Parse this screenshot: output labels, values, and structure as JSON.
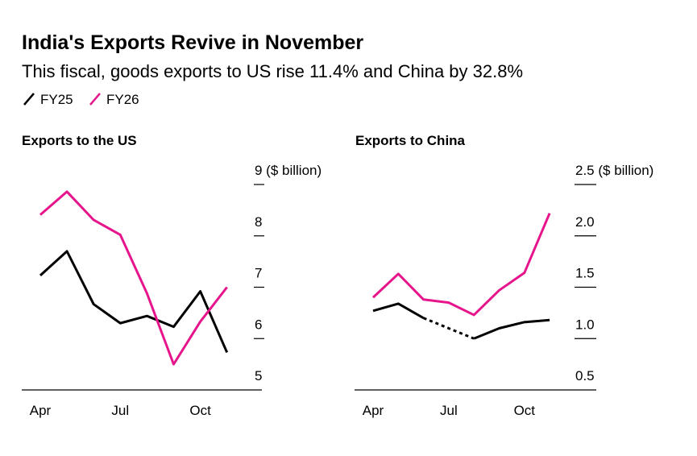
{
  "header": {
    "title": "India's Exports Revive in November",
    "subtitle": "This fiscal, goods exports to US rise 11.4% and China by 32.8%"
  },
  "chart_data": [
    {
      "type": "line",
      "title": "Exports to the US",
      "categories": [
        "Apr",
        null,
        null,
        "Jul",
        null,
        null,
        "Oct",
        null
      ],
      "series": [
        {
          "name": "FY25",
          "color": "#000000",
          "values": [
            7.23,
            7.7,
            6.67,
            6.3,
            6.44,
            6.23,
            6.92,
            5.73
          ]
        },
        {
          "name": "FY26",
          "color": "#e6158c",
          "values": [
            8.41,
            8.86,
            8.31,
            8.02,
            6.88,
            5.5,
            6.33,
            7.0
          ]
        }
      ],
      "ylim": [
        5,
        9
      ],
      "yticks": [
        5,
        6,
        7,
        8,
        {
          "value": 9,
          "label": "9 ($ billion)"
        }
      ]
    },
    {
      "type": "line",
      "title": "Exports to China",
      "categories": [
        "Apr",
        null,
        null,
        "Jul",
        null,
        null,
        "Oct",
        null
      ],
      "series": [
        {
          "name": "FY25",
          "color": "#000000",
          "values": [
            1.27,
            1.34,
            1.2,
            null,
            1.0,
            1.1,
            1.16,
            1.18
          ]
        },
        {
          "name": "FY26",
          "color": "#e6158c",
          "values": [
            1.4,
            1.63,
            1.38,
            1.35,
            1.23,
            1.47,
            1.64,
            2.22
          ]
        }
      ],
      "ylim": [
        0.5,
        2.5
      ],
      "yticks": [
        0.5,
        {
          "value": 1,
          "label": "1.0"
        },
        1.5,
        {
          "value": 2,
          "label": "2.0"
        },
        {
          "value": 2.5,
          "label": "2.5 ($ billion)"
        }
      ]
    }
  ]
}
